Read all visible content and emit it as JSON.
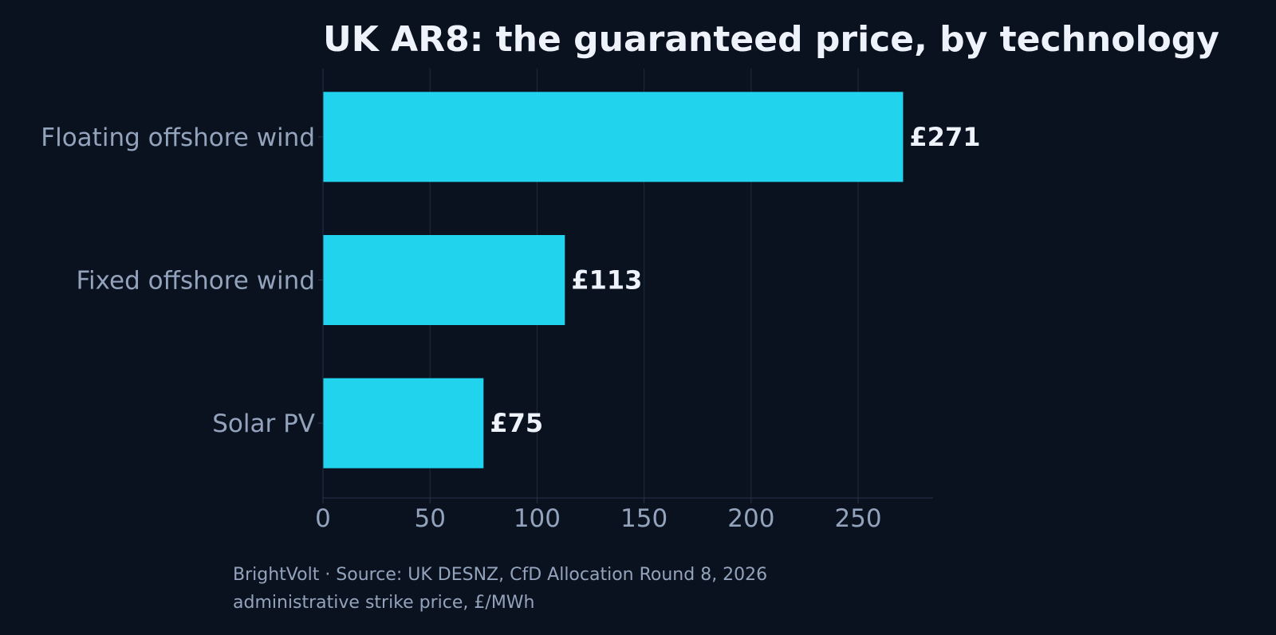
{
  "chart_data": {
    "type": "bar",
    "orientation": "horizontal",
    "title": "UK AR8: the guaranteed price, by technology",
    "categories": [
      "Floating offshore wind",
      "Fixed offshore wind",
      "Solar PV"
    ],
    "values": [
      271,
      113,
      75
    ],
    "value_labels": [
      "£271",
      "£113",
      "£75"
    ],
    "xlabel": "",
    "ylabel": "",
    "xlim": [
      0,
      285
    ],
    "xticks": [
      0,
      50,
      100,
      150,
      200,
      250
    ],
    "grid": "vertical",
    "legend": "none",
    "bar_color": "#22d3ee"
  },
  "footer": {
    "line1": "BrightVolt  ·  Source: UK DESNZ, CfD Allocation Round 8, 2026",
    "line2": "administrative strike price, £/MWh"
  },
  "colors": {
    "background": "#0a1220",
    "grid": "#1f2b3d",
    "axis": "#263347",
    "text_primary": "#eef2fb",
    "text_secondary": "#94a3bc"
  }
}
